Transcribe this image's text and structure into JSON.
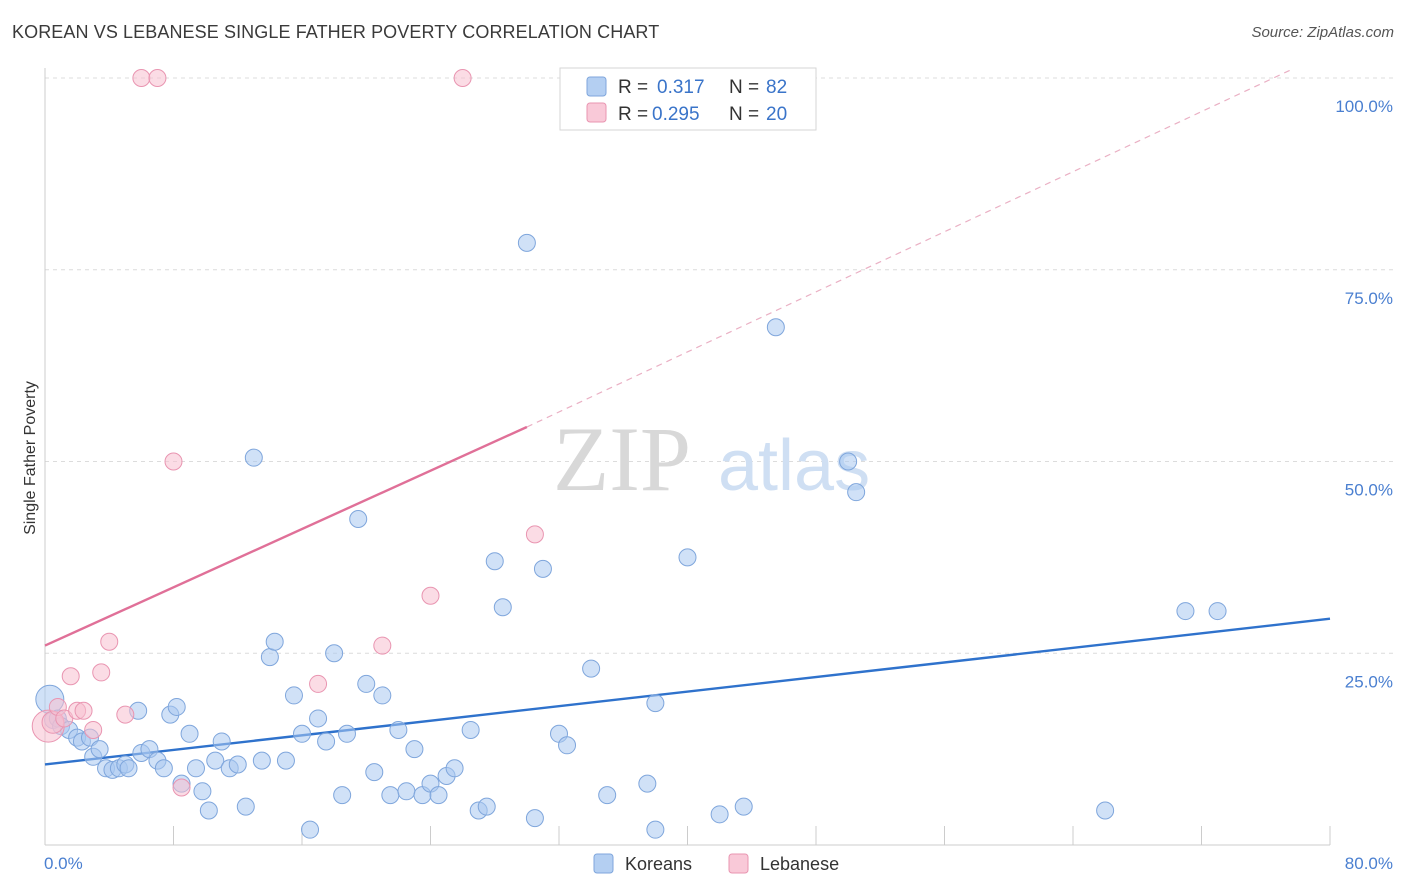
{
  "header": {
    "title": "KOREAN VS LEBANESE SINGLE FATHER POVERTY CORRELATION CHART",
    "source": "Source: ZipAtlas.com"
  },
  "watermark": {
    "zip": "ZIP",
    "atlas": "atlas"
  },
  "legend": {
    "rows": [
      {
        "r_label": "R =",
        "r_value": "0.317",
        "n_label": "N =",
        "n_value": "82"
      },
      {
        "r_label": "R =",
        "r_value": "0.295",
        "n_label": "N =",
        "n_value": "20"
      }
    ],
    "bottom": [
      "Koreans",
      "Lebanese"
    ]
  },
  "colors": {
    "koreans_fill": "#a9c8f0",
    "koreans_stroke": "#7fa6dc",
    "koreans_line": "#2f72cc",
    "lebanese_fill": "#f7bfd0",
    "lebanese_stroke": "#e995b1",
    "lebanese_line": "#e07098",
    "grid": "#dcdcdc",
    "tick_label": "#4a7fd0"
  },
  "chart_data": {
    "type": "scatter",
    "title": "KOREAN VS LEBANESE SINGLE FATHER POVERTY CORRELATION CHART",
    "xlabel": "",
    "ylabel": "Single Father Poverty",
    "xlim": [
      0,
      80
    ],
    "ylim": [
      0,
      102
    ],
    "x_tick_labels": [
      "0.0%",
      "80.0%"
    ],
    "y_ticks": [
      25,
      50,
      75,
      100
    ],
    "y_tick_labels": [
      "25.0%",
      "50.0%",
      "75.0%",
      "100.0%"
    ],
    "grid": "horizontal dashed",
    "legend_position": "top-center",
    "series": [
      {
        "name": "Koreans",
        "R": 0.317,
        "N": 82,
        "trend": {
          "x": [
            0,
            80
          ],
          "y": [
            10.5,
            29.5
          ]
        },
        "points": [
          [
            0.3,
            19.0
          ],
          [
            0.5,
            16.3
          ],
          [
            0.8,
            16.5
          ],
          [
            1.0,
            15.5
          ],
          [
            1.5,
            15.0
          ],
          [
            2.0,
            14.0
          ],
          [
            2.3,
            13.5
          ],
          [
            2.8,
            14.0
          ],
          [
            3.0,
            11.5
          ],
          [
            3.4,
            12.5
          ],
          [
            3.8,
            10.0
          ],
          [
            4.2,
            9.8
          ],
          [
            4.6,
            10.0
          ],
          [
            5.0,
            10.5
          ],
          [
            5.2,
            10.0
          ],
          [
            5.8,
            17.5
          ],
          [
            6.0,
            12.0
          ],
          [
            6.5,
            12.5
          ],
          [
            7.0,
            11.0
          ],
          [
            7.4,
            10.0
          ],
          [
            7.8,
            17.0
          ],
          [
            8.2,
            18.0
          ],
          [
            8.5,
            8.0
          ],
          [
            9.0,
            14.5
          ],
          [
            9.4,
            10.0
          ],
          [
            9.8,
            7.0
          ],
          [
            10.2,
            4.5
          ],
          [
            10.6,
            11.0
          ],
          [
            11.0,
            13.5
          ],
          [
            11.5,
            10.0
          ],
          [
            12.0,
            10.5
          ],
          [
            12.5,
            5.0
          ],
          [
            13.0,
            50.5
          ],
          [
            13.5,
            11.0
          ],
          [
            14.0,
            24.5
          ],
          [
            14.3,
            26.5
          ],
          [
            15.0,
            11.0
          ],
          [
            15.5,
            19.5
          ],
          [
            16.0,
            14.5
          ],
          [
            16.5,
            2.0
          ],
          [
            17.0,
            16.5
          ],
          [
            17.5,
            13.5
          ],
          [
            18.0,
            25.0
          ],
          [
            18.5,
            6.5
          ],
          [
            18.8,
            14.5
          ],
          [
            19.5,
            42.5
          ],
          [
            20.0,
            21.0
          ],
          [
            20.5,
            9.5
          ],
          [
            21.0,
            19.5
          ],
          [
            21.5,
            6.5
          ],
          [
            22.0,
            15.0
          ],
          [
            22.5,
            7.0
          ],
          [
            23.0,
            12.5
          ],
          [
            23.5,
            6.5
          ],
          [
            24.0,
            8.0
          ],
          [
            24.5,
            6.5
          ],
          [
            25.0,
            9.0
          ],
          [
            25.5,
            10.0
          ],
          [
            26.5,
            15.0
          ],
          [
            27.0,
            4.5
          ],
          [
            27.5,
            5.0
          ],
          [
            28.0,
            37.0
          ],
          [
            28.5,
            31.0
          ],
          [
            30.0,
            78.5
          ],
          [
            30.5,
            3.5
          ],
          [
            31.0,
            36.0
          ],
          [
            32.0,
            14.5
          ],
          [
            32.5,
            13.0
          ],
          [
            34.0,
            23.0
          ],
          [
            35.0,
            6.5
          ],
          [
            37.5,
            8.0
          ],
          [
            38.0,
            18.5
          ],
          [
            38.0,
            2.0
          ],
          [
            40.0,
            37.5
          ],
          [
            42.0,
            4.0
          ],
          [
            43.5,
            5.0
          ],
          [
            45.5,
            67.5
          ],
          [
            50.0,
            50.0
          ],
          [
            50.5,
            46.0
          ],
          [
            66.0,
            4.5
          ],
          [
            71.0,
            30.5
          ],
          [
            73.0,
            30.5
          ]
        ]
      },
      {
        "name": "Lebanese",
        "R": 0.295,
        "N": 20,
        "trend": {
          "x": [
            0,
            30
          ],
          "y": [
            26.0,
            54.5
          ],
          "dashed_extension": {
            "x": [
              30,
              77.5
            ],
            "y": [
              54.5,
              101
            ]
          }
        },
        "points": [
          [
            0.2,
            15.5
          ],
          [
            0.5,
            16.0
          ],
          [
            0.8,
            18.0
          ],
          [
            1.2,
            16.5
          ],
          [
            1.6,
            22.0
          ],
          [
            2.0,
            17.5
          ],
          [
            2.4,
            17.5
          ],
          [
            3.0,
            15.0
          ],
          [
            3.5,
            22.5
          ],
          [
            4.0,
            26.5
          ],
          [
            5.0,
            17.0
          ],
          [
            6.0,
            100
          ],
          [
            7.0,
            100
          ],
          [
            8.0,
            50
          ],
          [
            8.5,
            7.5
          ],
          [
            17.0,
            21.0
          ],
          [
            21.0,
            26.0
          ],
          [
            24.0,
            32.5
          ],
          [
            26.0,
            100
          ],
          [
            30.5,
            40.5
          ]
        ]
      }
    ]
  }
}
